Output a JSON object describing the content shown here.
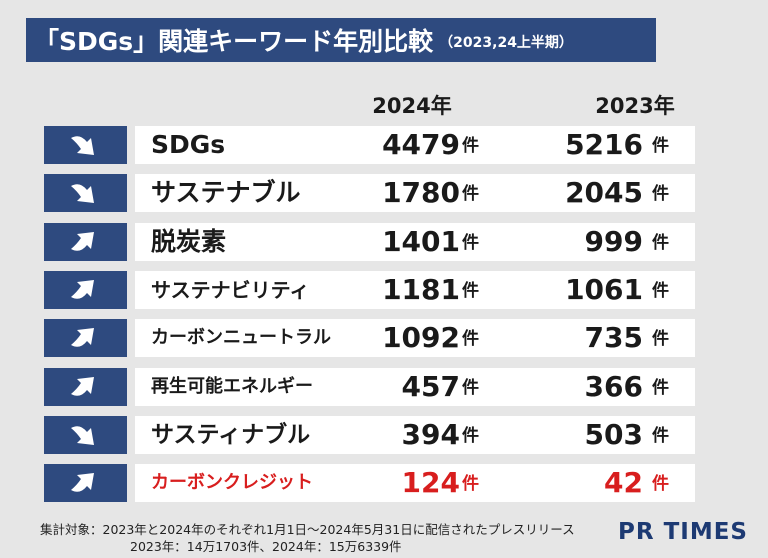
{
  "header": {
    "title": "「SDGs」関連キーワード年別比較",
    "subtitle": "（2023,24上半期）"
  },
  "chart_data": {
    "type": "table",
    "columns": [
      "2024年",
      "2023年"
    ],
    "unit": "件",
    "rows": [
      {
        "keyword": "SDGs",
        "v2024": 4479,
        "v2023": 5216,
        "trend": "down"
      },
      {
        "keyword": "サステナブル",
        "v2024": 1780,
        "v2023": 2045,
        "trend": "down"
      },
      {
        "keyword": "脱炭素",
        "v2024": 1401,
        "v2023": 999,
        "trend": "up"
      },
      {
        "keyword": "サステナビリティ",
        "v2024": 1181,
        "v2023": 1061,
        "trend": "up"
      },
      {
        "keyword": "カーボンニュートラル",
        "v2024": 1092,
        "v2023": 735,
        "trend": "up"
      },
      {
        "keyword": "再生可能エネルギー",
        "v2024": 457,
        "v2023": 366,
        "trend": "up"
      },
      {
        "keyword": "サスティナブル",
        "v2024": 394,
        "v2023": 503,
        "trend": "down"
      },
      {
        "keyword": "カーボンクレジット",
        "v2024": 124,
        "v2023": 42,
        "trend": "up"
      }
    ]
  },
  "footnote": {
    "line1": "集計対象：2023年と2024年のそれぞれ1月1日～2024年5月31日に配信されたプレスリリース",
    "line2": "2023年：14万1703件、2024年：15万6339件"
  },
  "logo": "PR TIMES",
  "colors": {
    "navy": "#2e4a7f",
    "row_bg": "#ffffff",
    "page_bg": "#e6e6e6",
    "highlight": "#d81e1e"
  },
  "icons": {
    "down": "arrow-down-right-icon",
    "up": "arrow-up-right-icon"
  }
}
